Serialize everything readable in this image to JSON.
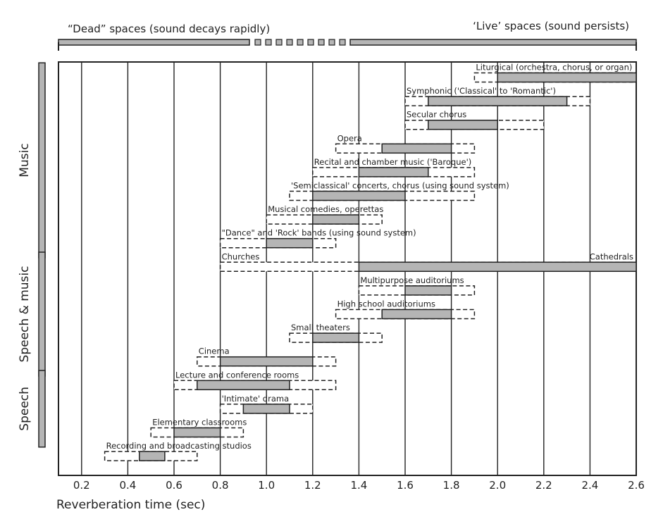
{
  "chart_data": {
    "type": "range-bar",
    "xlabel": "Reverberation time (sec)",
    "xlim": [
      0.1,
      2.6
    ],
    "x_ticks": [
      "0.2",
      "0.4",
      "0.6",
      "0.8",
      "1.0",
      "1.2",
      "1.4",
      "1.6",
      "1.8",
      "2.0",
      "2.2",
      "2.4",
      "2.6"
    ],
    "header": {
      "left": "“Dead” spaces (sound decays rapidly)",
      "right": "‘Live’ spaces (sound persists)"
    },
    "categories": [
      {
        "name": "Music",
        "rows": [
          0,
          7
        ]
      },
      {
        "name": "Speech & music",
        "rows": [
          8,
          12
        ]
      },
      {
        "name": "Speech",
        "rows": [
          13,
          15
        ]
      }
    ],
    "rows": [
      {
        "label": "Liturgical (orchestra, chorus, or organ)",
        "range": [
          1.9,
          2.6
        ],
        "preferred": [
          2.0,
          2.6
        ]
      },
      {
        "label": "Symphonic ('Classical' to 'Romantic')",
        "range": [
          1.6,
          2.4
        ],
        "preferred": [
          1.7,
          2.3
        ]
      },
      {
        "label": "Secular chorus",
        "range": [
          1.6,
          2.2
        ],
        "preferred": [
          1.7,
          2.0
        ]
      },
      {
        "label": "Opera",
        "range": [
          1.3,
          1.9
        ],
        "preferred": [
          1.5,
          1.8
        ]
      },
      {
        "label": "Recital and chamber music ('Baroque')",
        "range": [
          1.2,
          1.9
        ],
        "preferred": [
          1.4,
          1.7
        ]
      },
      {
        "label": "'Semiclassical' concerts, chorus (using sound system)",
        "range": [
          1.1,
          1.9
        ],
        "preferred": [
          1.2,
          1.6
        ]
      },
      {
        "label": "Musical comedies, operettas",
        "range": [
          1.0,
          1.5
        ],
        "preferred": [
          1.2,
          1.4
        ]
      },
      {
        "label": "\"Dance\" and 'Rock' bands (using sound system)",
        "range": [
          0.8,
          1.3
        ],
        "preferred": [
          1.0,
          1.2
        ]
      },
      {
        "label": "Churches",
        "range": [
          0.8,
          2.6
        ],
        "preferred": [
          1.4,
          2.6
        ]
      },
      {
        "label": "Multipurpose auditoriums",
        "range": [
          1.4,
          1.9
        ],
        "preferred": [
          1.6,
          1.8
        ]
      },
      {
        "label": "High school auditoriums",
        "range": [
          1.3,
          1.9
        ],
        "preferred": [
          1.5,
          1.8
        ]
      },
      {
        "label": "Small theaters",
        "range": [
          1.1,
          1.5
        ],
        "preferred": [
          1.2,
          1.4
        ]
      },
      {
        "label": "Cinema",
        "range": [
          0.7,
          1.3
        ],
        "preferred": [
          0.8,
          1.2
        ]
      },
      {
        "label": "Lecture and conference rooms",
        "range": [
          0.6,
          1.3
        ],
        "preferred": [
          0.7,
          1.1
        ]
      },
      {
        "label": "'Intimate' drama",
        "range": [
          0.8,
          1.2
        ],
        "preferred": [
          0.9,
          1.1
        ]
      },
      {
        "label": "Elementary classrooms",
        "range": [
          0.5,
          0.9
        ],
        "preferred": [
          0.6,
          0.8
        ]
      },
      {
        "label": "Recording and broadcasting studios",
        "range": [
          0.3,
          0.7
        ],
        "preferred": [
          0.45,
          0.56
        ]
      }
    ],
    "extra_labels": [
      {
        "text": "Cathedrals",
        "row": 8
      }
    ],
    "colors": {
      "preferred_fill": "#b5b5b5",
      "line": "#222222",
      "background": "#ffffff"
    }
  }
}
